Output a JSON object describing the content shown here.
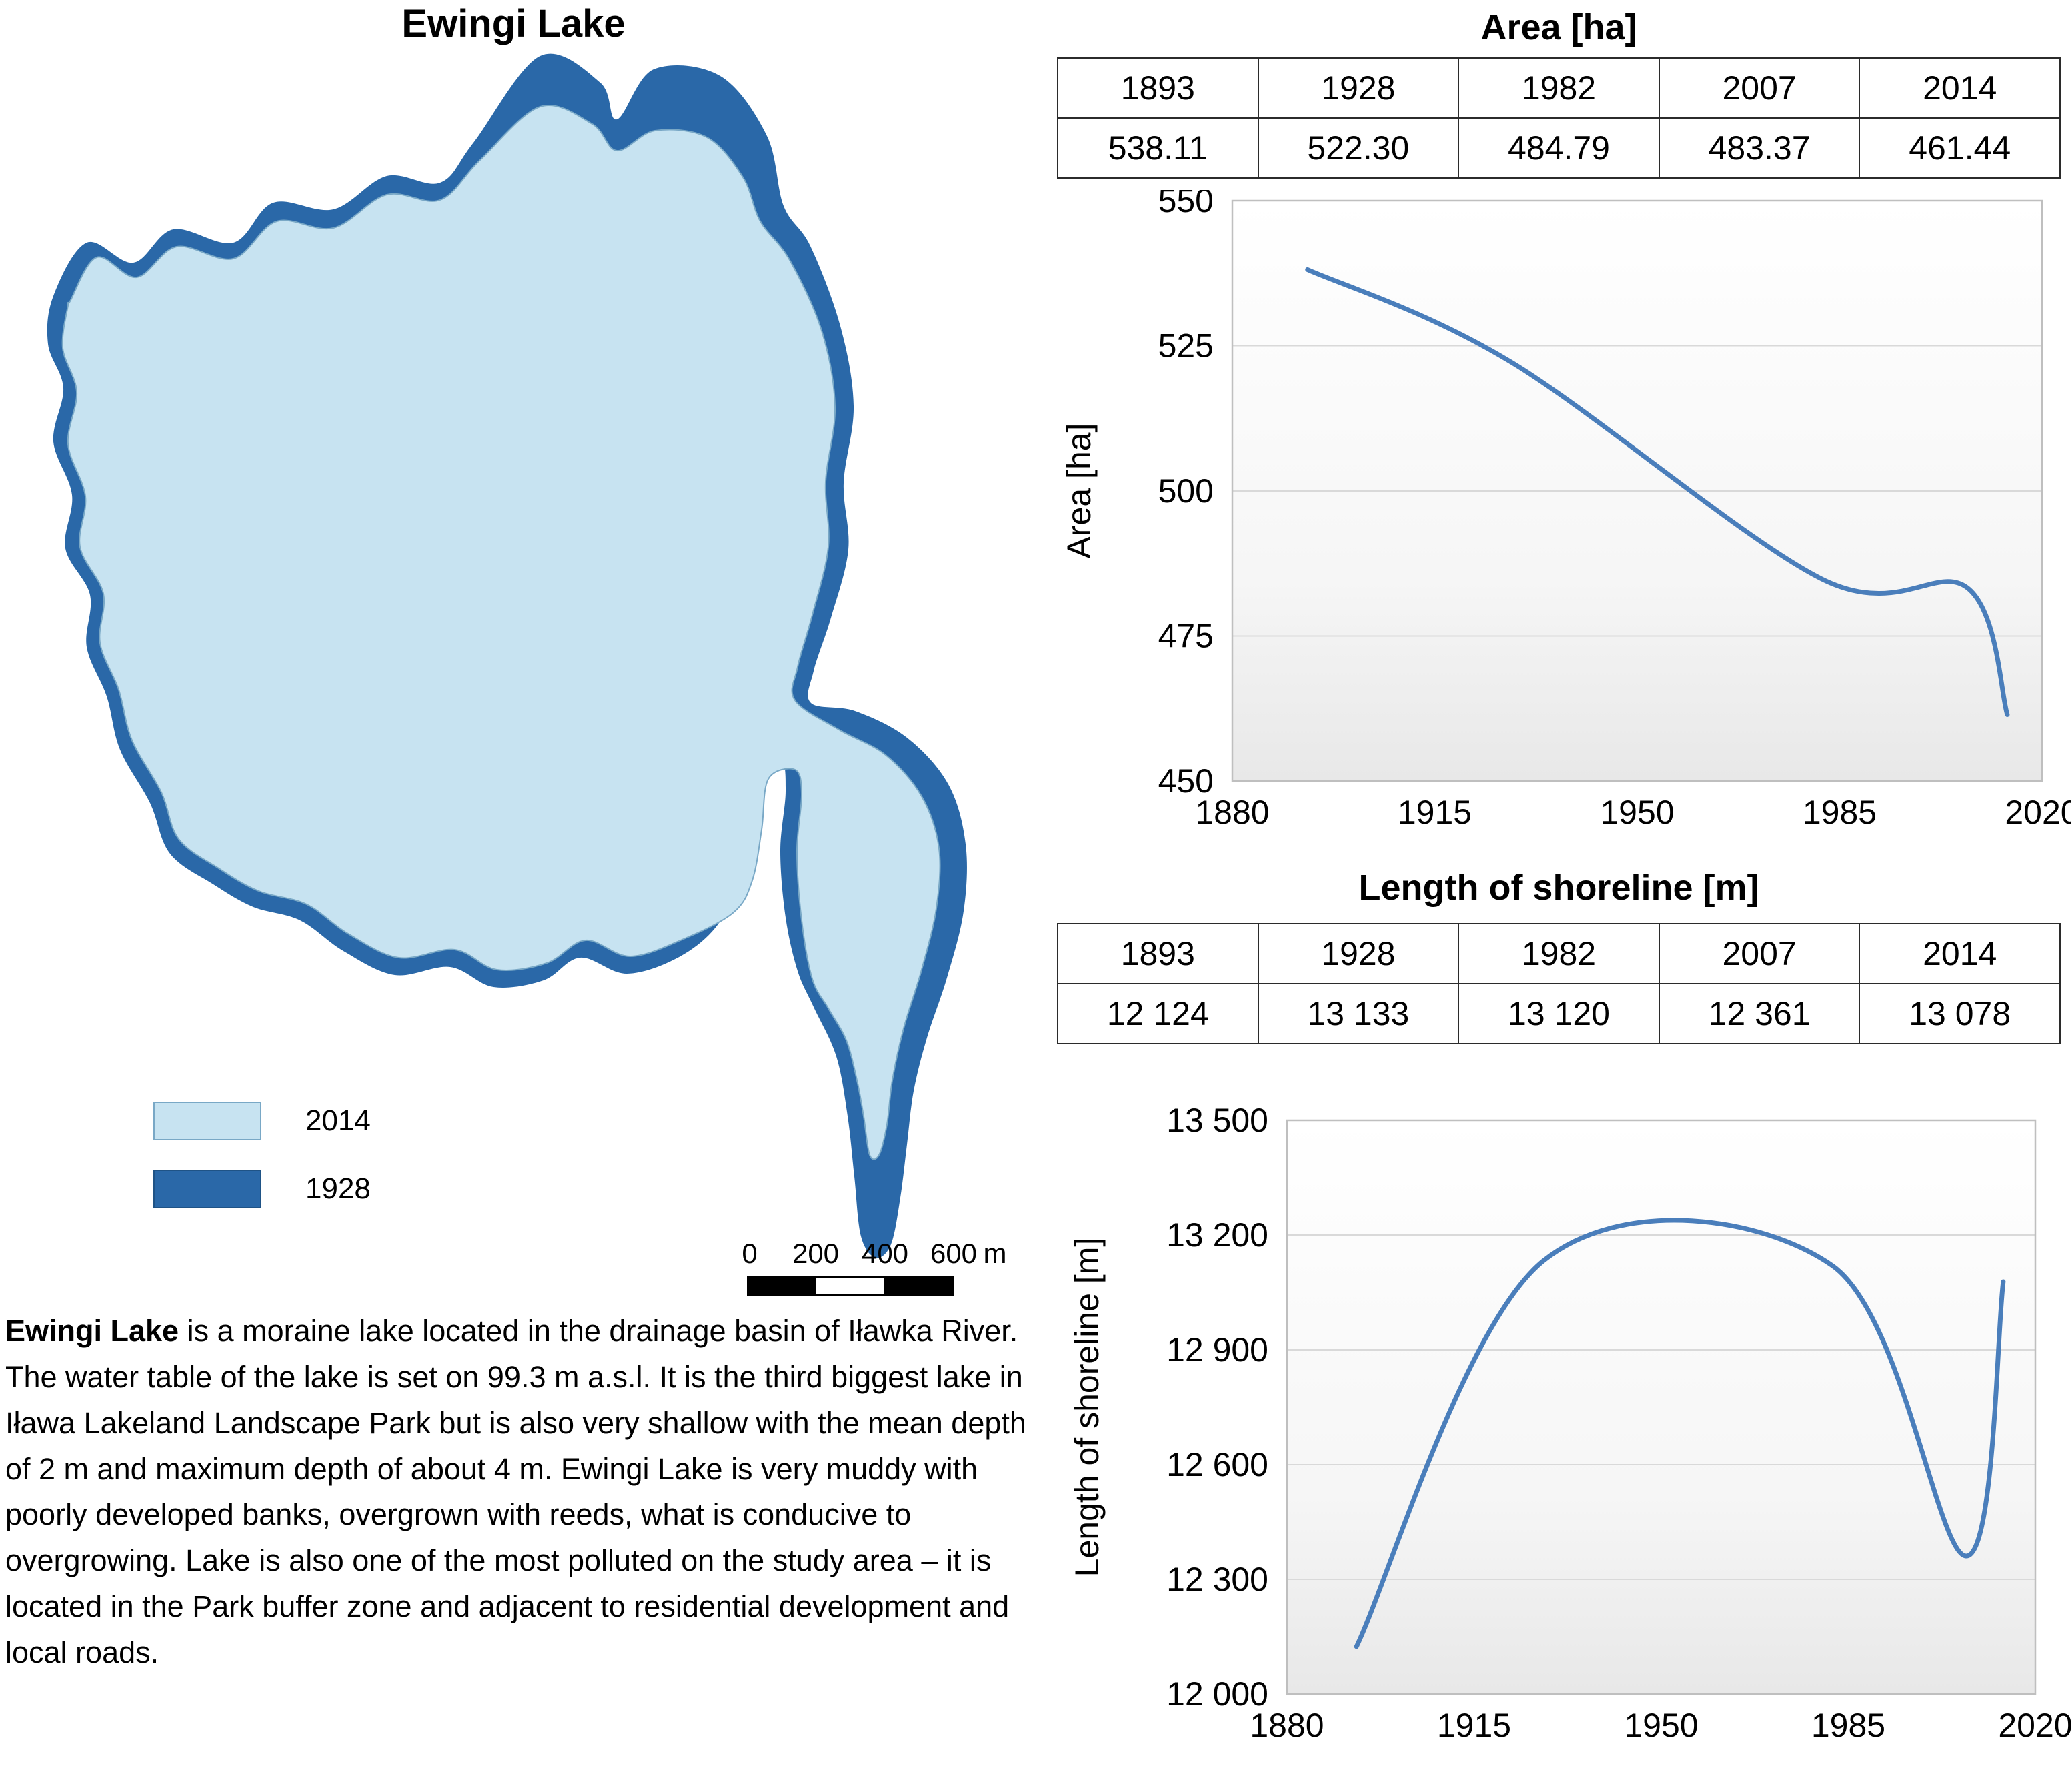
{
  "map": {
    "title": "Ewingi Lake",
    "legend": [
      {
        "label": "2014",
        "color": "#c7e3f1"
      },
      {
        "label": "1928",
        "color": "#2a68a8"
      }
    ],
    "scale_bar": {
      "labels": [
        "0",
        "200",
        "400",
        "600"
      ],
      "unit": "m"
    },
    "colors": {
      "lake_2014": "#c7e3f1",
      "lake_1928": "#2a68a8"
    }
  },
  "description": {
    "lead": "Ewingi Lake",
    "text": " is a moraine lake located in the drainage basin of Iławka River. The water table of the lake is set on 99.3 m a.s.l. It is the third biggest lake in Iława Lakeland Landscape Park but is also very shallow with the mean depth of 2 m and maximum depth of about 4 m. Ewingi Lake is very muddy with poorly developed banks, overgrown with reeds, what is conducive to overgrowing. Lake is also one of the most polluted on the study area – it is located in the Park buffer zone and adjacent to residential development and local roads."
  },
  "tables": [
    {
      "title": "Area [ha]",
      "years": [
        "1893",
        "1928",
        "1982",
        "2007",
        "2014"
      ],
      "values": [
        "538.11",
        "522.30",
        "484.79",
        "483.37",
        "461.44"
      ]
    },
    {
      "title": "Length of shoreline [m]",
      "years": [
        "1893",
        "1928",
        "1982",
        "2007",
        "2014"
      ],
      "values": [
        "12 124",
        "13 133",
        "13 120",
        "12 361",
        "13 078"
      ]
    }
  ],
  "chart_data": [
    {
      "type": "line",
      "title": "Area [ha]",
      "ylabel": "Area [ha]",
      "x": [
        1893,
        1928,
        1982,
        2007,
        2014
      ],
      "y": [
        538.11,
        522.3,
        484.79,
        483.37,
        461.44
      ],
      "xlim": [
        1880,
        2020
      ],
      "ylim": [
        450,
        550
      ],
      "xticks": [
        1880,
        1915,
        1950,
        1985,
        2020
      ],
      "xtick_labels": [
        "1880",
        "1915",
        "1950",
        "1985",
        "2020"
      ],
      "yticks": [
        450,
        475,
        500,
        525,
        550
      ],
      "ytick_labels": [
        "450",
        "475",
        "500",
        "525",
        "550"
      ],
      "line_color": "#4a7ebb",
      "grid": true,
      "legend_position": "none"
    },
    {
      "type": "line",
      "title": "Length of shoreline [m]",
      "ylabel": "Length of shoreline [m]",
      "x": [
        1893,
        1928,
        1982,
        2007,
        2014
      ],
      "y": [
        12124,
        13133,
        13120,
        12361,
        13078
      ],
      "xlim": [
        1880,
        2020
      ],
      "ylim": [
        12000,
        13500
      ],
      "xticks": [
        1880,
        1915,
        1950,
        1985,
        2020
      ],
      "xtick_labels": [
        "1880",
        "1915",
        "1950",
        "1985",
        "2020"
      ],
      "yticks": [
        12000,
        12300,
        12600,
        12900,
        13200,
        13500
      ],
      "ytick_labels": [
        "12 000",
        "12 300",
        "12 600",
        "12 900",
        "13 200",
        "13 500"
      ],
      "line_color": "#4a7ebb",
      "grid": true,
      "legend_position": "none"
    }
  ]
}
